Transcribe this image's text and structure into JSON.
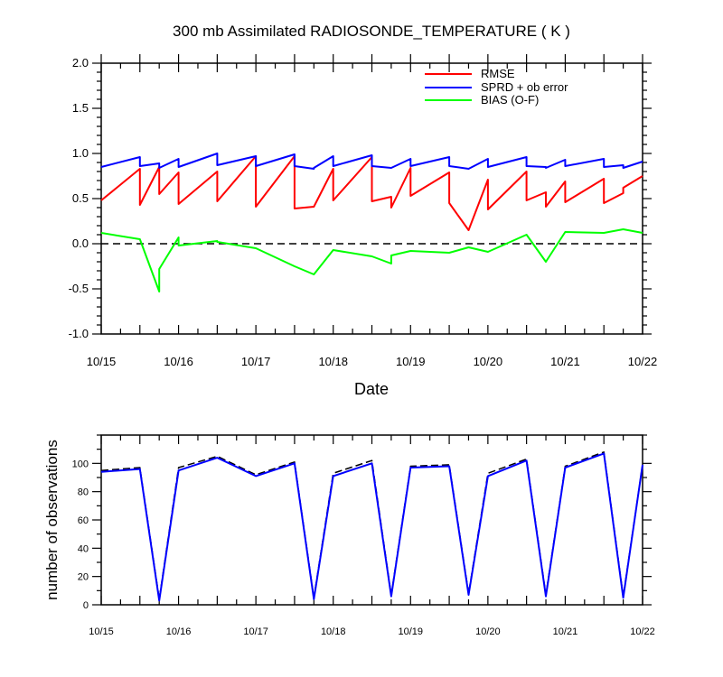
{
  "colors": {
    "rmse": "#ff0000",
    "sprd": "#0000ff",
    "bias": "#00ff00",
    "axis": "#000000"
  },
  "chart_data": [
    {
      "type": "line",
      "title": "300 mb Assimilated RADIOSONDE_TEMPERATURE ( K )",
      "xlabel": "Date",
      "ylabel": "",
      "xlim": [
        0,
        7
      ],
      "ylim": [
        -1.0,
        2.0
      ],
      "xticks": [
        {
          "x": 0,
          "label": "10/15"
        },
        {
          "x": 1,
          "label": "10/16"
        },
        {
          "x": 2,
          "label": "10/17"
        },
        {
          "x": 3,
          "label": "10/18"
        },
        {
          "x": 4,
          "label": "10/19"
        },
        {
          "x": 5,
          "label": "10/20"
        },
        {
          "x": 6,
          "label": "10/21"
        },
        {
          "x": 7,
          "label": "10/22"
        }
      ],
      "yticks": [
        {
          "y": 2.0,
          "label": "2.0"
        },
        {
          "y": 1.5,
          "label": "1.5"
        },
        {
          "y": 1.0,
          "label": "1.0"
        },
        {
          "y": 0.5,
          "label": "0.5"
        },
        {
          "y": 0.0,
          "label": "0.0"
        },
        {
          "y": -0.5,
          "label": "-0.5"
        },
        {
          "y": -1.0,
          "label": "-1.0"
        }
      ],
      "reference_line": {
        "y": 0.0,
        "style": "dashed"
      },
      "legend": {
        "placement": "top-right",
        "entries": [
          "RMSE",
          "SPRD + ob error",
          "BIAS (O-F)"
        ]
      },
      "series": [
        {
          "name": "RMSE",
          "color": "#ff0000",
          "x": [
            0,
            0.5,
            0.5,
            0.75,
            0.75,
            1,
            1,
            1.5,
            1.5,
            2,
            2,
            2.5,
            2.5,
            2.75,
            2.75,
            3,
            3,
            3.5,
            3.5,
            3.75,
            3.75,
            4,
            4,
            4.5,
            4.5,
            4.75,
            5,
            5,
            5.5,
            5.5,
            5.75,
            5.75,
            6,
            6,
            6.5,
            6.5,
            6.75,
            6.75,
            7
          ],
          "y": [
            0.48,
            0.83,
            0.43,
            0.85,
            0.55,
            0.79,
            0.44,
            0.8,
            0.47,
            0.97,
            0.41,
            0.97,
            0.39,
            0.41,
            0.41,
            0.83,
            0.48,
            0.96,
            0.47,
            0.52,
            0.4,
            0.84,
            0.53,
            0.79,
            0.45,
            0.15,
            0.71,
            0.38,
            0.8,
            0.48,
            0.57,
            0.41,
            0.69,
            0.46,
            0.72,
            0.45,
            0.56,
            0.62,
            0.75
          ]
        },
        {
          "name": "SPRD + ob error",
          "color": "#0000ff",
          "x": [
            0,
            0.5,
            0.5,
            0.75,
            0.75,
            1,
            1,
            1.5,
            1.5,
            2,
            2,
            2.5,
            2.5,
            2.75,
            2.75,
            3,
            3,
            3.5,
            3.5,
            3.75,
            3.75,
            4,
            4,
            4.5,
            4.5,
            4.75,
            5,
            5,
            5.5,
            5.5,
            5.75,
            5.75,
            6,
            6,
            6.5,
            6.5,
            6.75,
            6.75,
            7
          ],
          "y": [
            0.85,
            0.96,
            0.86,
            0.89,
            0.84,
            0.94,
            0.85,
            1.0,
            0.87,
            0.97,
            0.86,
            0.99,
            0.86,
            0.83,
            0.84,
            0.97,
            0.86,
            0.98,
            0.86,
            0.84,
            0.84,
            0.94,
            0.86,
            0.96,
            0.86,
            0.83,
            0.94,
            0.85,
            0.96,
            0.86,
            0.85,
            0.84,
            0.93,
            0.86,
            0.94,
            0.85,
            0.87,
            0.84,
            0.91
          ]
        },
        {
          "name": "BIAS (O-F)",
          "color": "#00ff00",
          "x": [
            0,
            0.5,
            0.75,
            0.75,
            1,
            1,
            1.5,
            1.5,
            2,
            2.5,
            2.75,
            3,
            3.5,
            3.75,
            3.75,
            4,
            4.5,
            4.75,
            5,
            5.5,
            5.75,
            6,
            6.5,
            6.75,
            7
          ],
          "y": [
            0.12,
            0.05,
            -0.53,
            -0.28,
            0.07,
            -0.02,
            0.03,
            0.02,
            -0.05,
            -0.25,
            -0.34,
            -0.07,
            -0.14,
            -0.22,
            -0.13,
            -0.08,
            -0.1,
            -0.04,
            -0.09,
            0.1,
            -0.2,
            0.13,
            0.12,
            0.16,
            0.12
          ]
        }
      ]
    },
    {
      "type": "line",
      "title": "",
      "xlabel": "",
      "ylabel": "number of observations",
      "xlim": [
        0,
        7
      ],
      "ylim": [
        0,
        120
      ],
      "xticks": [
        {
          "x": 0,
          "label": "10/15"
        },
        {
          "x": 1,
          "label": "10/16"
        },
        {
          "x": 2,
          "label": "10/17"
        },
        {
          "x": 3,
          "label": "10/18"
        },
        {
          "x": 4,
          "label": "10/19"
        },
        {
          "x": 5,
          "label": "10/20"
        },
        {
          "x": 6,
          "label": "10/21"
        },
        {
          "x": 7,
          "label": "10/22"
        }
      ],
      "yticks": [
        {
          "y": 100,
          "label": "100"
        },
        {
          "y": 80,
          "label": "80"
        },
        {
          "y": 60,
          "label": "60"
        },
        {
          "y": 40,
          "label": "40"
        },
        {
          "y": 20,
          "label": "20"
        },
        {
          "y": 0,
          "label": "0"
        }
      ],
      "series": [
        {
          "name": "observations (dashed)",
          "color": "#000000",
          "dash": true,
          "x": [
            0,
            0.5,
            0.75,
            1,
            1.5,
            2,
            2.5,
            2.75,
            3,
            3.5,
            3.75,
            4,
            4.5,
            4.75,
            5,
            5.5,
            5.75,
            6,
            6.5,
            6.75,
            7
          ],
          "y": [
            95,
            97,
            4,
            97,
            105,
            92,
            101,
            5,
            93,
            102,
            7,
            98,
            99,
            8,
            93,
            103,
            7,
            98,
            108,
            6,
            99
          ]
        },
        {
          "name": "observations",
          "color": "#0000ff",
          "dash": false,
          "x": [
            0,
            0.5,
            0.75,
            1,
            1.5,
            2,
            2.5,
            2.75,
            3,
            3.5,
            3.75,
            4,
            4.5,
            4.75,
            5,
            5.5,
            5.75,
            6,
            6.5,
            6.75,
            7
          ],
          "y": [
            94,
            96,
            3,
            95,
            104,
            91,
            100,
            4,
            91,
            100,
            6,
            97,
            98,
            7,
            91,
            102,
            6,
            97,
            107,
            5,
            99
          ]
        }
      ]
    }
  ]
}
